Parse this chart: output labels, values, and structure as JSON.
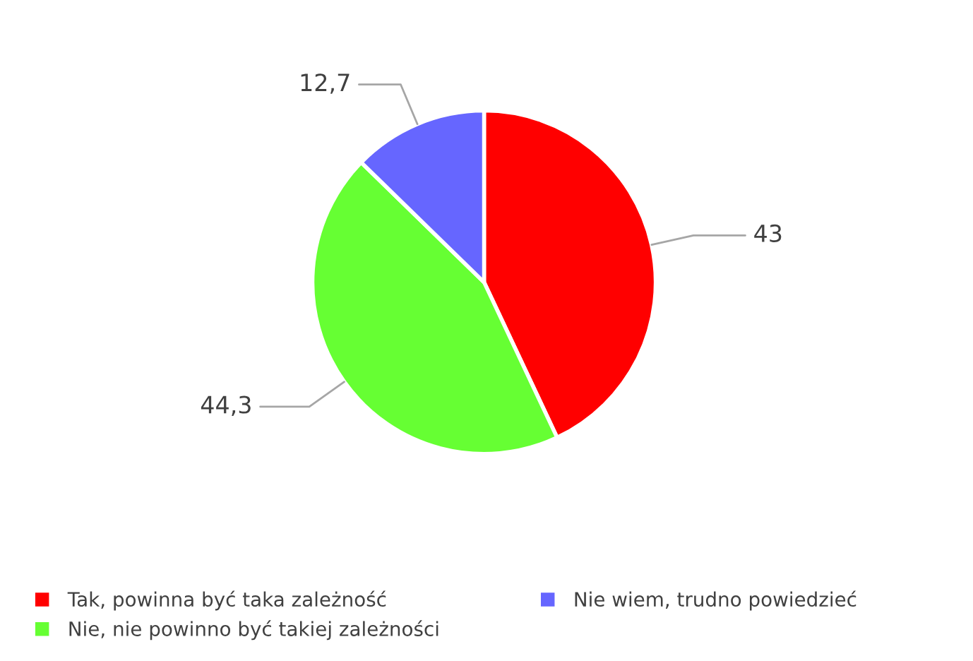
{
  "chart_data": {
    "type": "pie",
    "categories": [
      "Tak, powinna być taka zależność",
      "Nie, nie powinno być takiej zależności",
      "Nie wiem, trudno powiedzieć"
    ],
    "values": [
      43,
      44.3,
      12.7
    ],
    "value_labels": [
      "43",
      "44,3",
      "12,7"
    ],
    "colors": [
      "#ff0000",
      "#66ff33",
      "#6666ff"
    ],
    "legend": "bottom"
  }
}
